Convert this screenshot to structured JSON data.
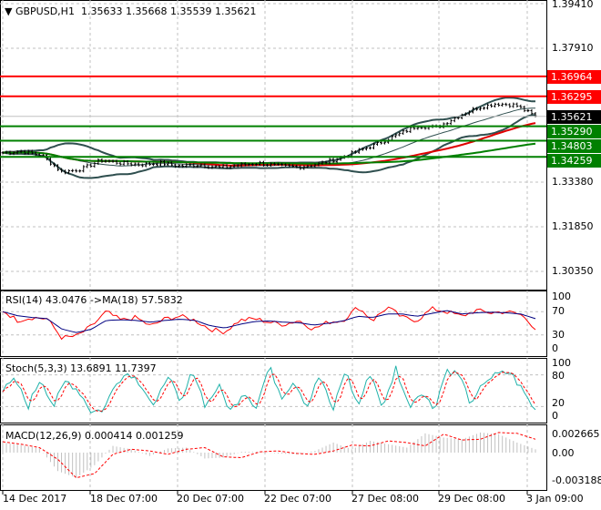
{
  "header": {
    "symbol": "GBPUSD,H1",
    "open": "1.35633",
    "high": "1.35668",
    "low": "1.35539",
    "close": "1.35621"
  },
  "price_axis": [
    "1.39410",
    "1.37910",
    "1.33380",
    "1.31850",
    "1.30350"
  ],
  "levels": [
    {
      "label": "1.36964",
      "price": 1.36964,
      "color": "#ff0000"
    },
    {
      "label": "1.36295",
      "price": 1.36295,
      "color": "#ff0000"
    },
    {
      "label": "1.35290",
      "price": 1.3529,
      "color": "#008000"
    },
    {
      "label": "1.34803",
      "price": 1.34803,
      "color": "#008000"
    },
    {
      "label": "1.34259",
      "price": 1.34259,
      "color": "#008000"
    }
  ],
  "current_price": {
    "label": "1.35621",
    "price": 1.35621,
    "color": "#000000"
  },
  "rsi": {
    "title": "RSI(14) 43.0476  ->MA(18) 57.5832",
    "axis": [
      "100",
      "70",
      "30",
      "0"
    ],
    "values": [
      72,
      55,
      60,
      58,
      25,
      28,
      45,
      70,
      55,
      60,
      45,
      58,
      62,
      55,
      40,
      35,
      55,
      58,
      52,
      48,
      55,
      40,
      52,
      55,
      78,
      55,
      78,
      60,
      55,
      75,
      70,
      62,
      72,
      68,
      70,
      65,
      42
    ],
    "ma": [
      70,
      63,
      60,
      58,
      40,
      34,
      40,
      55,
      56,
      55,
      52,
      55,
      57,
      55,
      46,
      42,
      48,
      53,
      54,
      52,
      51,
      47,
      50,
      54,
      62,
      60,
      66,
      66,
      62,
      67,
      72,
      66,
      68,
      69,
      68,
      66,
      58
    ]
  },
  "stoch": {
    "title": "Stoch(5,3,3) 13.6891 11.7397",
    "axis": [
      "100",
      "80",
      "20",
      "0"
    ],
    "values": [
      50,
      70,
      20,
      75,
      20,
      70,
      50,
      10,
      15,
      70,
      85,
      60,
      15,
      85,
      20,
      90,
      20,
      60,
      10,
      50,
      20,
      95,
      40,
      70,
      20,
      80,
      10,
      90,
      20,
      85,
      15,
      95,
      20,
      50,
      15,
      90,
      80,
      20,
      70,
      80,
      85,
      50,
      12
    ]
  },
  "macd": {
    "title": "MACD(12,26,9) 0.000414 0.001259",
    "axis": [
      "0.002665",
      "0.00",
      "-0.003188"
    ],
    "hist": [
      0.0012,
      0.0009,
      0.0005,
      -0.0022,
      -0.003,
      -0.0015,
      0.0008,
      0.0004,
      -0.0004,
      0.0005,
      0.0006,
      -0.0007,
      -0.0006,
      0.0001,
      0.0001,
      -0.0001,
      -0.0002,
      0.0002,
      0.0012,
      0.0004,
      0.0014,
      0.001,
      0.0006,
      0.0023,
      0.0018,
      0.0016,
      0.0024,
      0.0022,
      0.0012,
      0.0004
    ],
    "signal": [
      0.0013,
      0.001,
      0.0006,
      -0.0008,
      -0.003,
      -0.0025,
      -0.0002,
      0.0004,
      0.0002,
      -0.0002,
      0.0004,
      0.0006,
      -0.0005,
      -0.0006,
      0.0001,
      0.0002,
      -0.0001,
      -0.0002,
      0.0002,
      0.0009,
      0.0008,
      0.0014,
      0.0012,
      0.0008,
      0.0022,
      0.0015,
      0.0016,
      0.0024,
      0.0023,
      0.0016
    ]
  },
  "dates": [
    "14 Dec 2017",
    "18 Dec 07:00",
    "20 Dec 07:00",
    "22 Dec 07:00",
    "27 Dec 08:00",
    "29 Dec 08:00",
    "3 Jan 09:00"
  ],
  "chart_data": {
    "type": "line",
    "title": "GBPUSD,H1",
    "closes": [
      1.344,
      1.3445,
      1.343,
      1.3375,
      1.3385,
      1.3415,
      1.3405,
      1.34,
      1.3405,
      1.3395,
      1.34,
      1.339,
      1.3398,
      1.3405,
      1.3395,
      1.3392,
      1.3402,
      1.342,
      1.3445,
      1.347,
      1.35,
      1.353,
      1.3525,
      1.356,
      1.359,
      1.3605,
      1.36,
      1.3562
    ],
    "ylim": [
      1.302,
      1.396
    ]
  }
}
